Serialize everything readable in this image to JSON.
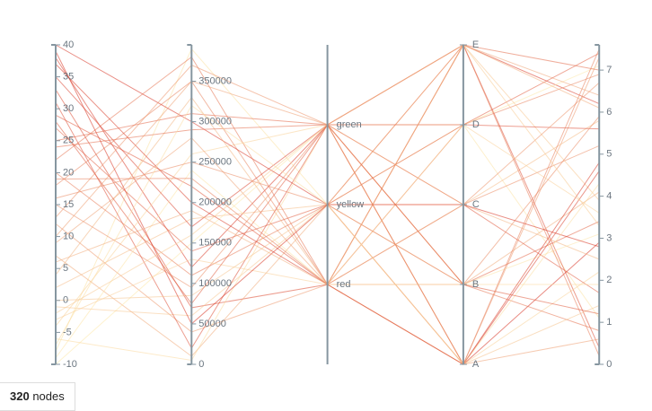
{
  "chart_data": {
    "type": "parallel",
    "dimensions": [
      {
        "kind": "number",
        "ylim": [
          -10,
          40
        ],
        "yticks": [
          -10,
          -5,
          0,
          5,
          10,
          15,
          20,
          25,
          30,
          35,
          40
        ]
      },
      {
        "kind": "number",
        "ylim": [
          0,
          395000
        ],
        "yticks": [
          0,
          50000,
          100000,
          150000,
          200000,
          250000,
          300000,
          350000
        ]
      },
      {
        "kind": "category",
        "categories": [
          "red",
          "yellow",
          "green"
        ],
        "padded": true
      },
      {
        "kind": "category",
        "categories": [
          "A",
          "B",
          "C",
          "D",
          "E"
        ],
        "padded": false
      },
      {
        "kind": "number",
        "ylim": [
          0,
          7.6
        ],
        "yticks": [
          0,
          1,
          2,
          3,
          4,
          5,
          6,
          7
        ]
      }
    ],
    "colors": [
      "#fee8a8",
      "#d7301f"
    ],
    "records": [
      [
        38,
        120000,
        "green",
        "E",
        6.2
      ],
      [
        -8,
        390000,
        "yellow",
        "D",
        1.1
      ],
      [
        12,
        40000,
        "red",
        "A",
        7.3
      ],
      [
        25,
        310000,
        "green",
        "B",
        3.4
      ],
      [
        2,
        180000,
        "yellow",
        "C",
        5.8
      ],
      [
        33,
        70000,
        "red",
        "E",
        0.4
      ],
      [
        -4,
        260000,
        "green",
        "A",
        2.2
      ],
      [
        18,
        350000,
        "red",
        "D",
        6.9
      ],
      [
        7,
        10000,
        "yellow",
        "B",
        4.1
      ],
      [
        29,
        220000,
        "red",
        "C",
        1.7
      ],
      [
        -10,
        150000,
        "green",
        "D",
        7.1
      ],
      [
        40,
        300000,
        "yellow",
        "A",
        2.9
      ],
      [
        15,
        95000,
        "green",
        "C",
        5.2
      ],
      [
        22,
        380000,
        "red",
        "B",
        0.8
      ],
      [
        -1,
        60000,
        "yellow",
        "E",
        3.9
      ],
      [
        35,
        170000,
        "green",
        "A",
        4.6
      ],
      [
        9,
        280000,
        "red",
        "E",
        6.4
      ],
      [
        -6,
        5000,
        "green",
        "B",
        1.9
      ],
      [
        27,
        140000,
        "yellow",
        "D",
        7.4
      ],
      [
        4,
        330000,
        "red",
        "C",
        2.5
      ],
      [
        31,
        20000,
        "green",
        "D",
        5.6
      ],
      [
        -9,
        240000,
        "red",
        "B",
        3.1
      ],
      [
        20,
        110000,
        "yellow",
        "E",
        0.2
      ],
      [
        13,
        370000,
        "green",
        "C",
        6.7
      ],
      [
        37,
        200000,
        "red",
        "A",
        4.8
      ],
      [
        0,
        85000,
        "yellow",
        "A",
        1.4
      ],
      [
        24,
        290000,
        "green",
        "E",
        7.0
      ],
      [
        -3,
        130000,
        "red",
        "D",
        3.6
      ],
      [
        16,
        250000,
        "yellow",
        "B",
        5.9
      ],
      [
        10,
        350000,
        "green",
        "A",
        0.6
      ],
      [
        39,
        50000,
        "yellow",
        "C",
        2.8
      ],
      [
        6,
        190000,
        "red",
        "E",
        6.1
      ],
      [
        -7,
        320000,
        "yellow",
        "A",
        4.3
      ],
      [
        28,
        75000,
        "green",
        "B",
        1.2
      ],
      [
        19,
        230000,
        "red",
        "A",
        7.5
      ],
      [
        -2,
        160000,
        "green",
        "E",
        3.3
      ]
    ],
    "node_count": 320,
    "node_label": "nodes"
  }
}
